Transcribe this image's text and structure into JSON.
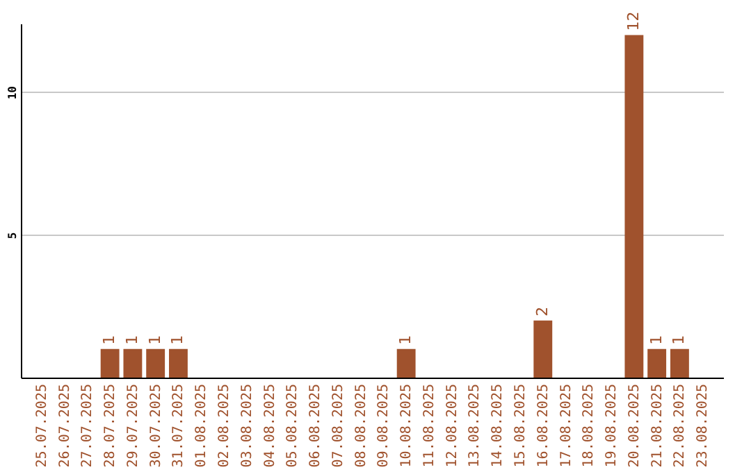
{
  "chart_data": {
    "type": "bar",
    "categories": [
      "25.07.2025",
      "26.07.2025",
      "27.07.2025",
      "28.07.2025",
      "29.07.2025",
      "30.07.2025",
      "31.07.2025",
      "01.08.2025",
      "02.08.2025",
      "03.08.2025",
      "04.08.2025",
      "05.08.2025",
      "06.08.2025",
      "07.08.2025",
      "08.08.2025",
      "09.08.2025",
      "10.08.2025",
      "11.08.2025",
      "12.08.2025",
      "13.08.2025",
      "14.08.2025",
      "15.08.2025",
      "16.08.2025",
      "17.08.2025",
      "18.08.2025",
      "19.08.2025",
      "20.08.2025",
      "21.08.2025",
      "22.08.2025",
      "23.08.2025"
    ],
    "values": [
      0,
      0,
      0,
      1,
      1,
      1,
      1,
      0,
      0,
      0,
      0,
      0,
      0,
      0,
      0,
      0,
      1,
      0,
      0,
      0,
      0,
      0,
      2,
      0,
      0,
      0,
      12,
      1,
      1,
      0
    ],
    "value_labels": [
      null,
      null,
      null,
      "1",
      "1",
      "1",
      "1",
      null,
      null,
      null,
      null,
      null,
      null,
      null,
      null,
      null,
      "1",
      null,
      null,
      null,
      null,
      null,
      "2",
      null,
      null,
      null,
      "12",
      "1",
      "1",
      null
    ],
    "color": "#a0522d",
    "ylim": [
      0,
      12.4
    ],
    "yticks": [
      5,
      10
    ],
    "grid": "y"
  }
}
